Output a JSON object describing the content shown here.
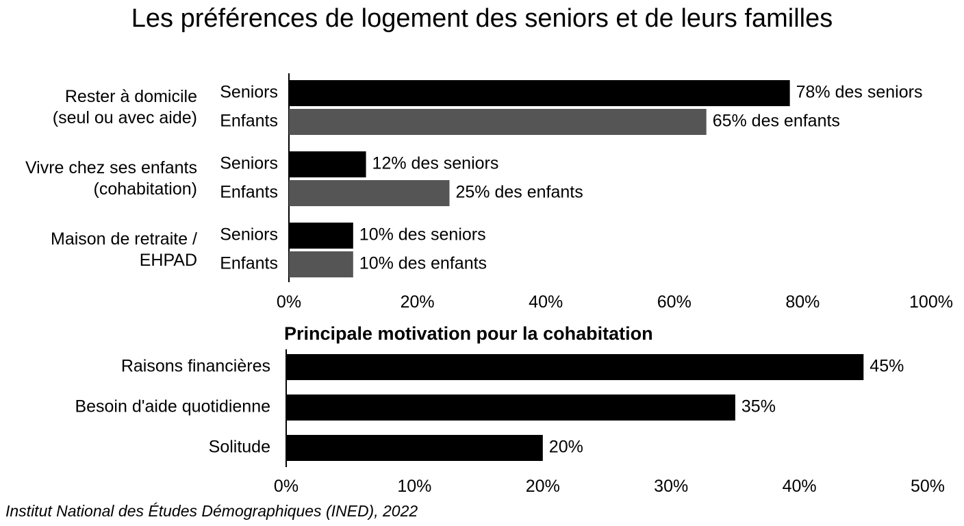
{
  "title": "Les préférences de logement des seniors et de leurs familles",
  "source": "Institut National des Études Démographiques (INED), 2022",
  "colors": {
    "seniors": "#000000",
    "enfants": "#555555",
    "motivation": "#000000"
  },
  "chart_data": [
    {
      "type": "bar",
      "orientation": "horizontal",
      "title": "",
      "categories": [
        "Rester à domicile\n(seul ou avec aide)",
        "Vivre chez ses enfants\n(cohabitation)",
        "Maison de retraite /\nEHPAD"
      ],
      "series": [
        {
          "name": "Seniors",
          "values": [
            78,
            12,
            10
          ],
          "value_labels": [
            "78% des seniors",
            "12% des seniors",
            "10% des seniors"
          ]
        },
        {
          "name": "Enfants",
          "values": [
            65,
            25,
            10
          ],
          "value_labels": [
            "65% des enfants",
            "25% des enfants",
            "10% des enfants"
          ]
        }
      ],
      "xlim": [
        0,
        100
      ],
      "xticks": [
        "0%",
        "20%",
        "40%",
        "60%",
        "80%",
        "100%"
      ],
      "grid": false
    },
    {
      "type": "bar",
      "orientation": "horizontal",
      "title": "Principale motivation pour la cohabitation",
      "categories": [
        "Raisons financières",
        "Besoin d'aide quotidienne",
        "Solitude"
      ],
      "values": [
        45,
        35,
        20
      ],
      "value_labels": [
        "45%",
        "35%",
        "20%"
      ],
      "xlim": [
        0,
        50
      ],
      "xticks": [
        "0%",
        "10%",
        "20%",
        "30%",
        "40%",
        "50%"
      ],
      "grid": false
    }
  ]
}
